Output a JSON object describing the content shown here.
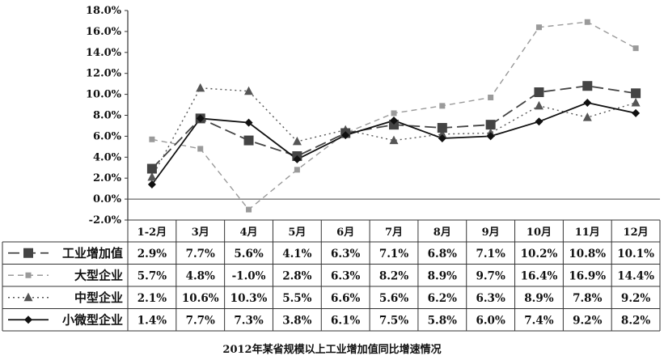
{
  "chart_data": {
    "type": "line",
    "categories": [
      "1-2月",
      "3月",
      "4月",
      "5月",
      "6月",
      "7月",
      "8月",
      "9月",
      "10月",
      "11月",
      "12月"
    ],
    "ylim": [
      -2.0,
      18.0
    ],
    "ytick_labels": [
      "18.0%",
      "16.0%",
      "14.0%",
      "12.0%",
      "10.0%",
      "8.0%",
      "6.0%",
      "4.0%",
      "2.0%",
      "0.0%",
      "-2.0%"
    ],
    "series": [
      {
        "name": "工业增加值",
        "marker": "square",
        "dash": "dashed",
        "color": "#444444",
        "values": [
          2.9,
          7.7,
          5.6,
          4.1,
          6.3,
          7.1,
          6.8,
          7.1,
          10.2,
          10.8,
          10.1
        ],
        "labels": [
          "2.9%",
          "7.7%",
          "5.6%",
          "4.1%",
          "6.3%",
          "7.1%",
          "6.8%",
          "7.1%",
          "10.2%",
          "10.8%",
          "10.1%"
        ]
      },
      {
        "name": "大型企业",
        "marker": "small-square",
        "dash": "dashed-light",
        "color": "#9a9a9a",
        "values": [
          5.7,
          4.8,
          -1.0,
          2.8,
          6.3,
          8.2,
          8.9,
          9.7,
          16.4,
          16.9,
          14.4
        ],
        "labels": [
          "5.7%",
          "4.8%",
          "-1.0%",
          "2.8%",
          "6.3%",
          "8.2%",
          "8.9%",
          "9.7%",
          "16.4%",
          "16.9%",
          "14.4%"
        ]
      },
      {
        "name": "中型企业",
        "marker": "triangle",
        "dash": "dotted",
        "color": "#555555",
        "values": [
          2.1,
          10.6,
          10.3,
          5.5,
          6.6,
          5.6,
          6.2,
          6.3,
          8.9,
          7.8,
          9.2
        ],
        "labels": [
          "2.1%",
          "10.6%",
          "10.3%",
          "5.5%",
          "6.6%",
          "5.6%",
          "6.2%",
          "6.3%",
          "8.9%",
          "7.8%",
          "9.2%"
        ]
      },
      {
        "name": "小微型企业",
        "marker": "diamond",
        "dash": "solid",
        "color": "#111111",
        "values": [
          1.4,
          7.7,
          7.3,
          3.8,
          6.1,
          7.5,
          5.8,
          6.0,
          7.4,
          9.2,
          8.2
        ],
        "labels": [
          "1.4%",
          "7.7%",
          "7.3%",
          "3.8%",
          "6.1%",
          "7.5%",
          "5.8%",
          "6.0%",
          "7.4%",
          "9.2%",
          "8.2%"
        ]
      }
    ],
    "title": "2012年某省规模以上工业增加值同比增速情况",
    "legend": "data-table-left"
  }
}
